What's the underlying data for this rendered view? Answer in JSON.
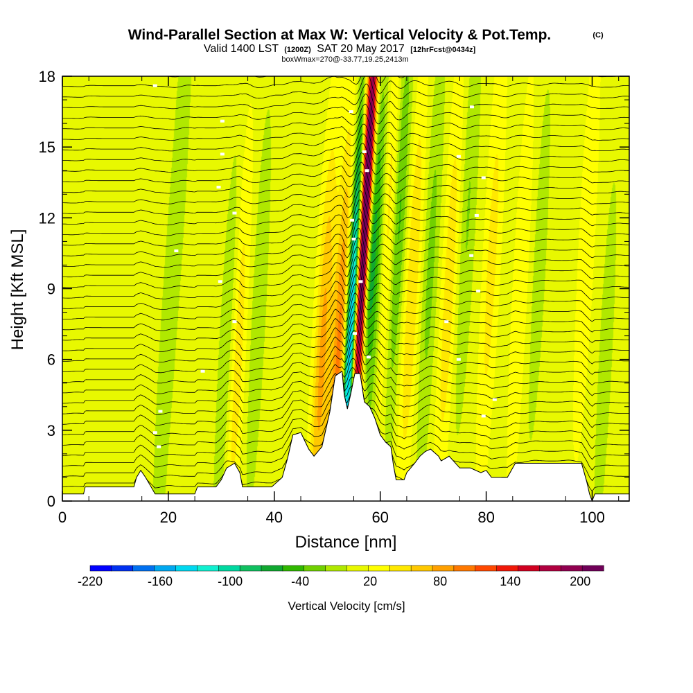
{
  "chart_data": {
    "type": "cross-section",
    "title": {
      "main": "Wind-Parallel Section at Max W: Vertical Velocity & Pot.Temp.",
      "copyright": "(C)",
      "valid": "Valid 1400 LST",
      "utc": "(1200Z)",
      "date": "SAT 20 May 2017",
      "forecast": "[12hrFcst@0434z]",
      "box": "boxWmax=270@-33.77,19.25,2413m"
    },
    "xlabel": "Distance [nm]",
    "ylabel": "Height [Kft MSL]",
    "xlim": [
      0,
      107
    ],
    "ylim": [
      0,
      18
    ],
    "x_ticks": [
      0,
      20,
      40,
      60,
      80,
      100
    ],
    "x_tick_labels": [
      "0",
      "20",
      "40",
      "60",
      "80",
      "100"
    ],
    "y_ticks": [
      0,
      3,
      6,
      9,
      12,
      15,
      18
    ],
    "y_tick_labels": [
      "0",
      "3",
      "6",
      "9",
      "12",
      "15",
      "18"
    ],
    "background_value_cm_s": 10,
    "terrain_kft": [
      [
        0,
        0.3
      ],
      [
        4,
        0.3
      ],
      [
        4.3,
        0.6
      ],
      [
        13.5,
        0.6
      ],
      [
        14,
        1.0
      ],
      [
        14.8,
        1.3
      ],
      [
        15.7,
        1.0
      ],
      [
        16.5,
        0.7
      ],
      [
        17.5,
        0.3
      ],
      [
        25,
        0.3
      ],
      [
        25.5,
        0.6
      ],
      [
        29,
        0.6
      ],
      [
        30,
        0.9
      ],
      [
        31,
        1.4
      ],
      [
        32.5,
        1.6
      ],
      [
        33.5,
        1.2
      ],
      [
        34,
        0.6
      ],
      [
        38,
        0.6
      ],
      [
        39.5,
        0.6
      ],
      [
        41.5,
        1.0
      ],
      [
        42.5,
        1.8
      ],
      [
        43.5,
        2.8
      ],
      [
        45,
        2.9
      ],
      [
        46.5,
        2.2
      ],
      [
        47.5,
        1.9
      ],
      [
        49,
        2.3
      ],
      [
        50.5,
        3.8
      ],
      [
        51.5,
        5.3
      ],
      [
        52.8,
        5.5
      ],
      [
        53.2,
        4.5
      ],
      [
        53.8,
        3.9
      ],
      [
        54.5,
        4.6
      ],
      [
        55.2,
        5.4
      ],
      [
        56.2,
        5.4
      ],
      [
        57,
        4.2
      ],
      [
        58,
        4.0
      ],
      [
        59,
        3.5
      ],
      [
        60,
        2.8
      ],
      [
        61,
        2.5
      ],
      [
        62,
        2.3
      ],
      [
        62.5,
        1.5
      ],
      [
        63,
        0.9
      ],
      [
        64.5,
        0.9
      ],
      [
        65,
        1.2
      ],
      [
        66.5,
        1.6
      ],
      [
        67.5,
        1.9
      ],
      [
        68.5,
        2.1
      ],
      [
        69.5,
        2.2
      ],
      [
        71,
        1.9
      ],
      [
        71.5,
        1.7
      ],
      [
        73,
        1.9
      ],
      [
        75,
        1.4
      ],
      [
        77,
        1.4
      ],
      [
        79,
        1.2
      ],
      [
        80,
        1.3
      ],
      [
        81,
        1.0
      ],
      [
        84,
        1.0
      ],
      [
        85.5,
        1.6
      ],
      [
        98,
        1.6
      ],
      [
        99,
        0.8
      ],
      [
        99.5,
        0.3
      ],
      [
        100,
        0
      ],
      [
        100.5,
        0.3
      ],
      [
        107,
        0.3
      ]
    ],
    "w_features": [
      {
        "x": 55.6,
        "height": 0,
        "value": 170
      },
      {
        "x": 54.5,
        "height": 7,
        "value": -200
      },
      {
        "x": 57.3,
        "height": 8,
        "value": -180
      },
      {
        "x": 56.3,
        "height": 9,
        "value": 165
      },
      {
        "x": 58,
        "height": 14,
        "value": 190
      },
      {
        "x": 49,
        "height": 6,
        "value": 70
      },
      {
        "x": 52.2,
        "height": 6,
        "value": 90
      },
      {
        "x": 59.5,
        "height": 10,
        "value": -60
      },
      {
        "x": 61.5,
        "height": 12,
        "value": 55
      },
      {
        "x": 63.5,
        "height": 12,
        "value": -55
      },
      {
        "x": 66,
        "height": 9,
        "value": 45
      },
      {
        "x": 69.5,
        "height": 10,
        "value": -35
      },
      {
        "x": 73,
        "height": 9,
        "value": 40
      },
      {
        "x": 76.5,
        "height": 12,
        "value": -30
      },
      {
        "x": 81,
        "height": 10,
        "value": 35
      },
      {
        "x": 86.5,
        "height": 9,
        "value": 25
      },
      {
        "x": 90,
        "height": 10,
        "value": -20
      },
      {
        "x": 99,
        "height": 11,
        "value": 25
      },
      {
        "x": 102.5,
        "height": 6,
        "value": -20
      },
      {
        "x": 31,
        "height": 6,
        "value": -30
      },
      {
        "x": 33,
        "height": 6,
        "value": 40
      },
      {
        "x": 37,
        "height": 8,
        "value": -25
      },
      {
        "x": 22.5,
        "height": 15,
        "value": -20
      },
      {
        "x": 19,
        "height": 4,
        "value": -20
      },
      {
        "x": 2.5,
        "height": 9,
        "value": -10
      }
    ],
    "theta_contours": {
      "count": 40,
      "base_kft": 0.45,
      "spacing_kft": 0.45
    },
    "colorbar": {
      "title": "Vertical Velocity [cm/s]",
      "tick_values": [
        -220,
        -160,
        -100,
        -40,
        20,
        80,
        140,
        200
      ],
      "tick_labels": [
        "-220",
        "-160",
        "-100",
        "-40",
        "20",
        "80",
        "140",
        "200"
      ],
      "range": [
        -220,
        220
      ],
      "colors": [
        "#0000ff",
        "#0030f0",
        "#0070f0",
        "#00a8f0",
        "#00d8f0",
        "#10f0d0",
        "#00d8a0",
        "#10c060",
        "#10a830",
        "#30b800",
        "#70d000",
        "#b0e800",
        "#e8f800",
        "#ffff00",
        "#ffe800",
        "#ffc800",
        "#ffa000",
        "#ff7800",
        "#ff4800",
        "#f01808",
        "#d00020",
        "#b00040",
        "#900050",
        "#700058"
      ]
    }
  }
}
